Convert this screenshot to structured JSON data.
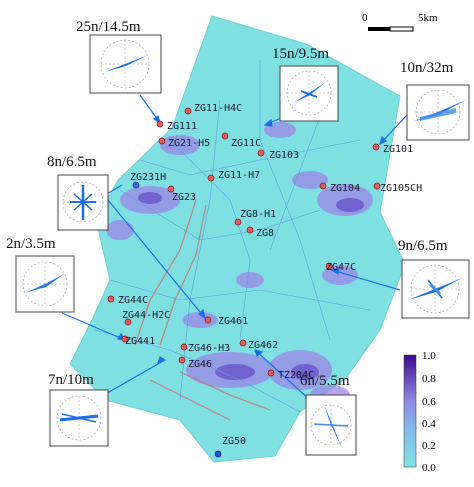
{
  "scale_bar": {
    "start_label": "0",
    "end_label": "5km"
  },
  "colorbar": {
    "ticks": [
      "1.0",
      "0.8",
      "0.6",
      "0.4",
      "0.2",
      "0.0"
    ],
    "colors": {
      "low": "#7fe3e3",
      "mid": "#8aa6e6",
      "high": "#3d0a8c"
    }
  },
  "wells": [
    {
      "name": "ZG11-H4C"
    },
    {
      "name": "ZG111"
    },
    {
      "name": "ZG21-H5"
    },
    {
      "name": "ZG11C"
    },
    {
      "name": "ZG103"
    },
    {
      "name": "ZG101"
    },
    {
      "name": "ZG231H"
    },
    {
      "name": "ZG11-H7"
    },
    {
      "name": "ZG23"
    },
    {
      "name": "ZG104"
    },
    {
      "name": "ZG105CH"
    },
    {
      "name": "ZG8-H1"
    },
    {
      "name": "ZG8"
    },
    {
      "name": "ZG47C"
    },
    {
      "name": "ZG44C"
    },
    {
      "name": "ZG44-H2C"
    },
    {
      "name": "ZG461"
    },
    {
      "name": "ZG441"
    },
    {
      "name": "ZG46-H3"
    },
    {
      "name": "ZG462"
    },
    {
      "name": "ZG46"
    },
    {
      "name": "TZ204C"
    },
    {
      "name": "ZG50"
    }
  ],
  "rose_diagrams": [
    {
      "label": "25n/14.5m"
    },
    {
      "label": "15n/9.5m"
    },
    {
      "label": "10n/32m"
    },
    {
      "label": "8n/6.5m"
    },
    {
      "label": "2n/3.5m"
    },
    {
      "label": "9n/6.5m"
    },
    {
      "label": "7n/10m"
    },
    {
      "label": "6n/5.5m"
    }
  ]
}
